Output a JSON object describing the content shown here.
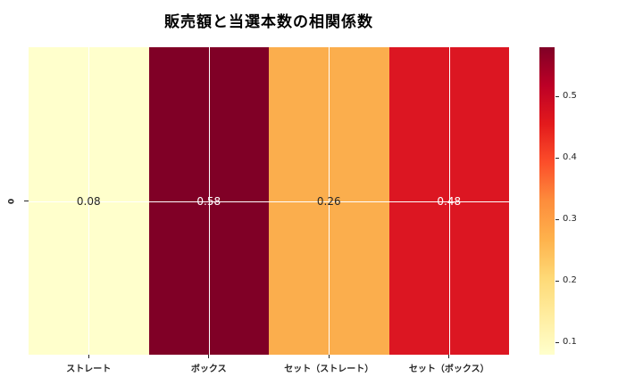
{
  "title": "販売額と当選本数の相関係数",
  "chart_data": {
    "type": "heatmap",
    "title": "販売額と当選本数の相関係数",
    "columns": [
      "ストレート",
      "ボックス",
      "セット（ストレート）",
      "セット（ボックス）"
    ],
    "rows": [
      "0"
    ],
    "values": [
      [
        0.08,
        0.58,
        0.26,
        0.48
      ]
    ],
    "value_labels": [
      [
        "0.08",
        "0.58",
        "0.26",
        "0.48"
      ]
    ],
    "cell_colors": [
      [
        "#ffffcc",
        "#800026",
        "#fbae4d",
        "#dc1622"
      ]
    ],
    "value_text_colors": [
      [
        "#262626",
        "#ffffff",
        "#262626",
        "#ffffff"
      ]
    ],
    "colormap": "YlOrRd",
    "vmin": 0.08,
    "vmax": 0.58,
    "colorbar_ticks": [
      {
        "label": "0.5",
        "value": 0.5
      },
      {
        "label": "0.4",
        "value": 0.4
      },
      {
        "label": "0.3",
        "value": 0.3
      },
      {
        "label": "0.2",
        "value": 0.2
      },
      {
        "label": "0.1",
        "value": 0.1
      }
    ],
    "grid": true,
    "gridline_color": "#ffffff",
    "legend_position": "right-colorbar"
  },
  "colors": {
    "background": "#ffffff",
    "tick_text": "#262626",
    "colorbar_gradient_bottom_to_top": [
      "#ffffcc",
      "#ffeda0",
      "#fed976",
      "#feb24c",
      "#fd8d3c",
      "#fc4e2a",
      "#e31a1c",
      "#bd0026",
      "#800026"
    ]
  }
}
